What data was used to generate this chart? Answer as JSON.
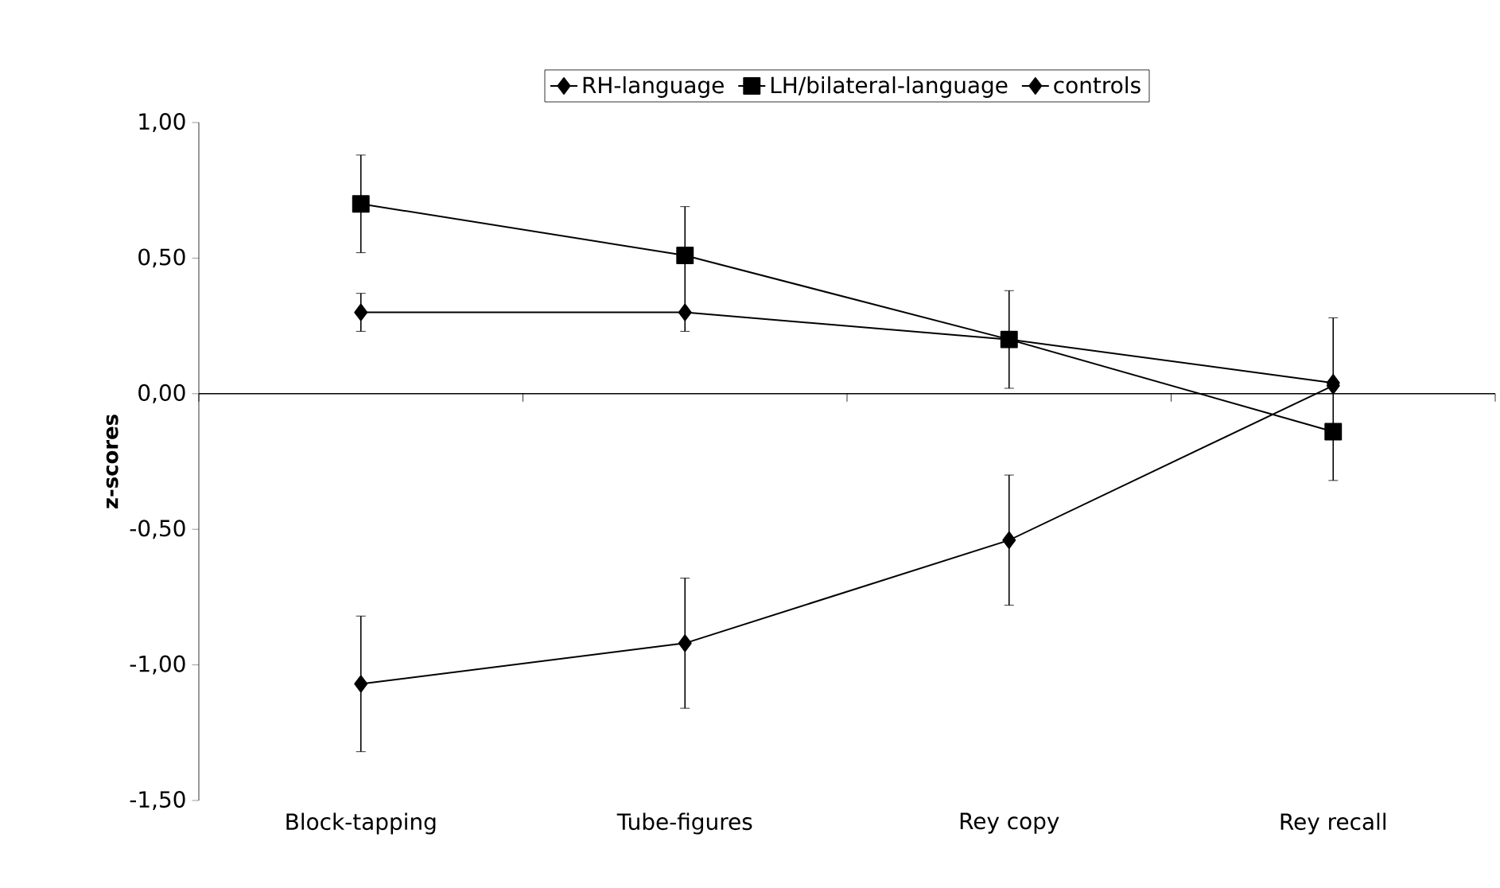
{
  "chart_data": {
    "type": "line",
    "ylabel": "**z-scores**",
    "categories": [
      "Block-tapping",
      "Tube-figures",
      "Rey copy",
      "Rey recall"
    ],
    "series": [
      {
        "name": "RH-language",
        "color": "#000000",
        "marker": "diamond",
        "values": [
          -1.07,
          -0.92,
          -0.54,
          0.03
        ],
        "errors": [
          0.25,
          0.24,
          0.24,
          null
        ]
      },
      {
        "name": "LH/bilateral-language",
        "color": "#000000",
        "marker": "square",
        "values": [
          0.7,
          0.51,
          0.2,
          -0.14
        ],
        "errors": [
          0.18,
          [
            0.23,
            0.69
          ],
          0.18,
          [
            -0.32,
            0.28
          ]
        ]
      },
      {
        "name": "controls",
        "color": "#000000",
        "marker": "diamond",
        "values": [
          0.3,
          0.3,
          0.2,
          0.04
        ],
        "errors": [
          0.07,
          null,
          null,
          null
        ]
      }
    ],
    "ylim": [
      -1.5,
      1.0
    ],
    "yticks": [
      {
        "value": -1.5,
        "label": "-1,50"
      },
      {
        "value": -1.0,
        "label": "-1,00"
      },
      {
        "value": -0.5,
        "label": "-0,50"
      },
      {
        "value": 0,
        "label": "0,00"
      },
      {
        "value": 0.5,
        "label": "0,50"
      },
      {
        "value": 1.0,
        "label": "1,00"
      }
    ],
    "ref_lines": [
      {
        "axis": "y",
        "value": 0,
        "color": "#000000"
      }
    ],
    "legend": "top",
    "grid": false,
    "line_style": "solid"
  }
}
